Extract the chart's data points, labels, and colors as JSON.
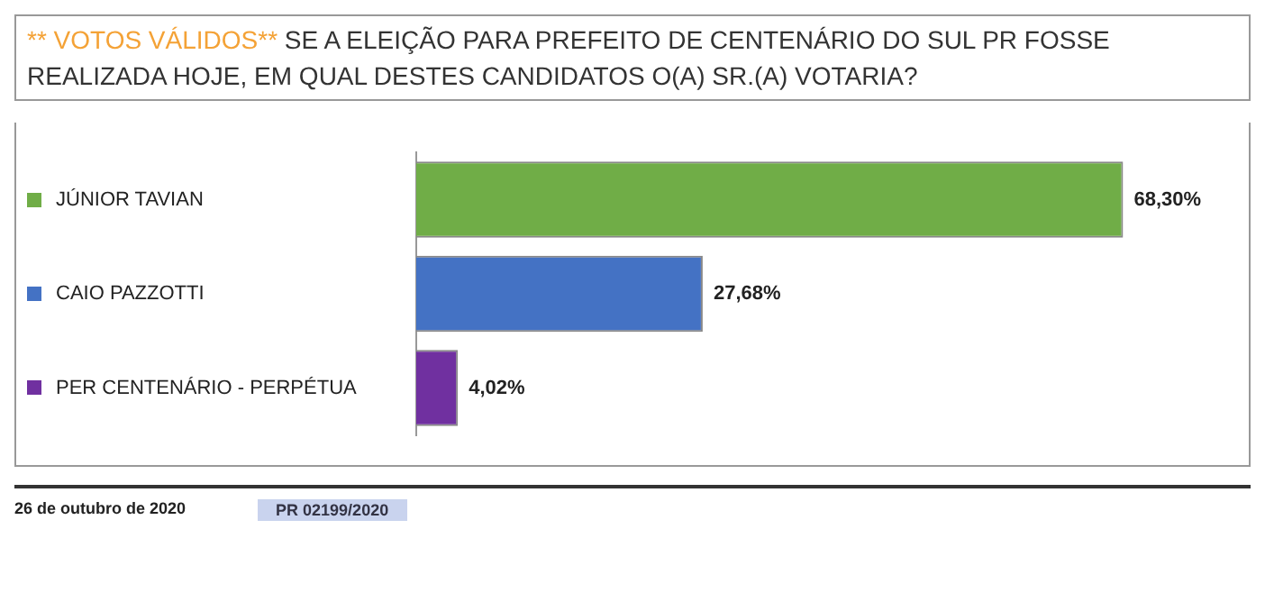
{
  "chart_data": {
    "type": "bar",
    "orientation": "horizontal",
    "title": "** VOTOS VÁLIDOS**",
    "subtitle": "SE A ELEIÇÃO PARA PREFEITO DE CENTENÁRIO DO SUL PR FOSSE REALIZADA HOJE, EM QUAL DESTES CANDIDATOS O(A) SR.(A) VOTARIA?",
    "categories": [
      "JÚNIOR TAVIAN",
      "CAIO PAZZOTTI",
      "PER CENTENÁRIO - PERPÉTUA"
    ],
    "values": [
      68.3,
      27.68,
      4.02
    ],
    "colors": [
      "#70ad47",
      "#4472c4",
      "#7030a0"
    ],
    "value_labels": [
      "68,30%",
      "27,68%",
      "4,02%"
    ],
    "tick_labels": false,
    "annotations": [
      "26 de outubro de 2020",
      "PR 02199/2020"
    ]
  }
}
